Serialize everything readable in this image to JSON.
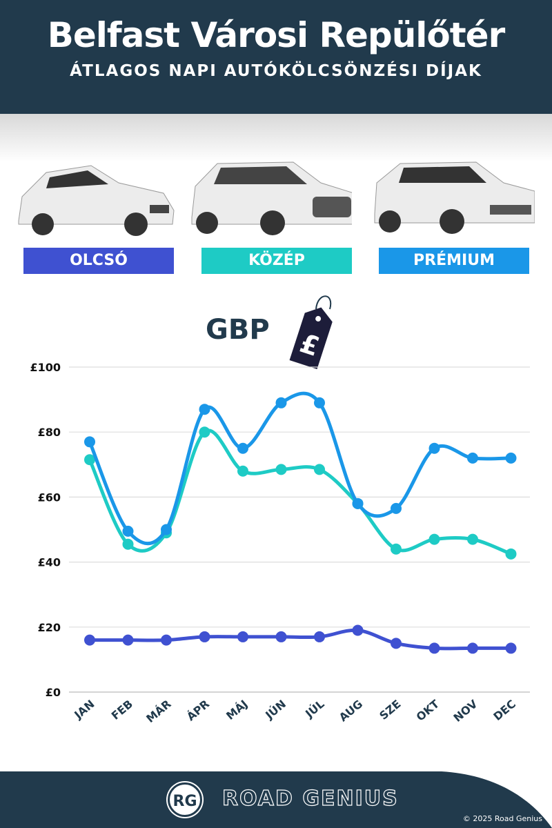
{
  "header": {
    "title": "Belfast Városi Repülőtér",
    "subtitle": "ÁTLAGOS NAPI AUTÓKÖLCSÖNZÉSI DÍJAK"
  },
  "categories": [
    {
      "label": "OLCSÓ",
      "color": "#3f51d1"
    },
    {
      "label": "KÖZÉP",
      "color": "#1ecbc5"
    },
    {
      "label": "PRÉMIUM",
      "color": "#1a97e8"
    }
  ],
  "currency": "GBP",
  "currency_symbol": "£",
  "footer": {
    "brand": "ROAD GENIUS",
    "logo": "RG",
    "copyright": "© 2025 Road Genius"
  },
  "chart_data": {
    "type": "line",
    "title": "ÁTLAGOS NAPI AUTÓKÖLCSÖNZÉSI DÍJAK",
    "categories": [
      "JAN",
      "FEB",
      "MÁR",
      "ÁPR",
      "MÁJ",
      "JÚN",
      "JÚL",
      "AUG",
      "SZE",
      "OKT",
      "NOV",
      "DEC"
    ],
    "ylim": [
      0,
      100
    ],
    "yticks": [
      0,
      20,
      40,
      60,
      80,
      100
    ],
    "ytick_labels": [
      "£0",
      "£20",
      "£40",
      "£60",
      "£80",
      "£100"
    ],
    "grid": true,
    "series": [
      {
        "name": "OLCSÓ",
        "color": "#3f51d1",
        "values": [
          16,
          16,
          16,
          17,
          17,
          17,
          17,
          19,
          15,
          13.5,
          13.5,
          13.5
        ]
      },
      {
        "name": "KÖZÉP",
        "color": "#1ecbc5",
        "values": [
          71.5,
          45.5,
          49,
          80,
          68,
          68.5,
          68.5,
          58,
          44,
          47,
          47,
          42.5
        ]
      },
      {
        "name": "PRÉMIUM",
        "color": "#1a97e8",
        "values": [
          77,
          49.5,
          50,
          87,
          75,
          89,
          89,
          58,
          56.5,
          75,
          72,
          72
        ]
      }
    ]
  }
}
